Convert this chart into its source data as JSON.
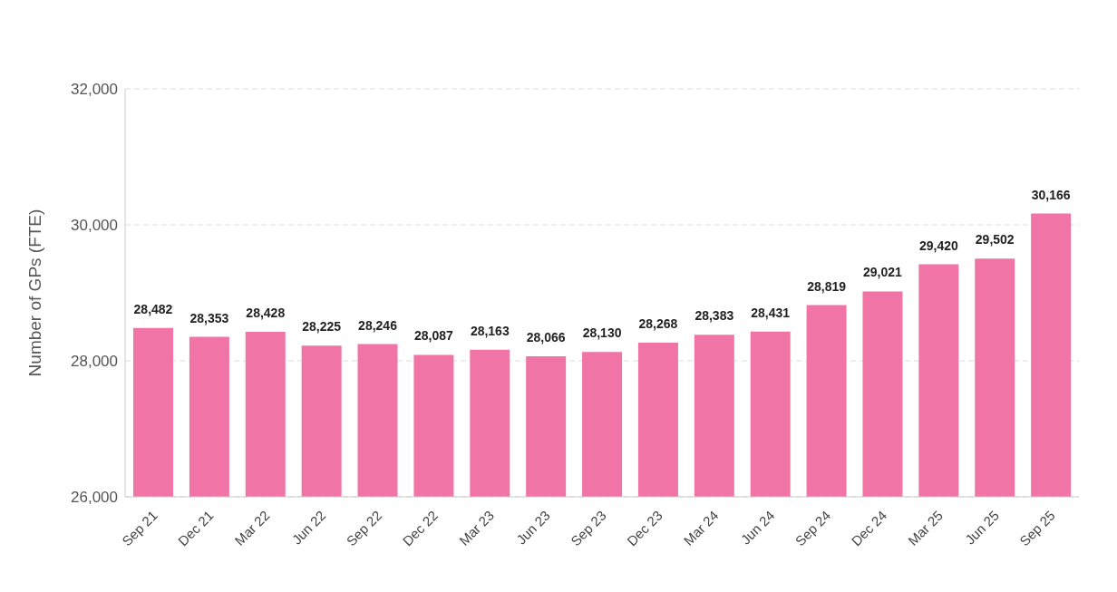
{
  "chart_data": {
    "type": "bar",
    "ylabel": "Number of GPs (FTE)",
    "categories": [
      "Sep 21",
      "Dec 21",
      "Mar 22",
      "Jun 22",
      "Sep 22",
      "Dec 22",
      "Mar 23",
      "Jun 23",
      "Sep 23",
      "Dec 23",
      "Mar 24",
      "Jun 24",
      "Sep 24",
      "Dec 24",
      "Mar 25",
      "Jun 25",
      "Sep 25"
    ],
    "values": [
      28482,
      28353,
      28428,
      28225,
      28246,
      28087,
      28163,
      28066,
      28130,
      28268,
      28383,
      28431,
      28819,
      29021,
      29420,
      29502,
      30166
    ],
    "value_labels": [
      "28,482",
      "28,353",
      "28,428",
      "28,225",
      "28,246",
      "28,087",
      "28,163",
      "28,066",
      "28,130",
      "28,268",
      "28,383",
      "28,431",
      "28,819",
      "29,021",
      "29,420",
      "29,502",
      "30,166"
    ],
    "color": "#f075a6",
    "ylim": [
      26000,
      32000
    ],
    "yticks": [
      {
        "value": 26000,
        "label": "26,000"
      },
      {
        "value": 28000,
        "label": "28,000"
      },
      {
        "value": 30000,
        "label": "30,000"
      },
      {
        "value": 32000,
        "label": "32,000"
      }
    ],
    "grid": "y"
  }
}
